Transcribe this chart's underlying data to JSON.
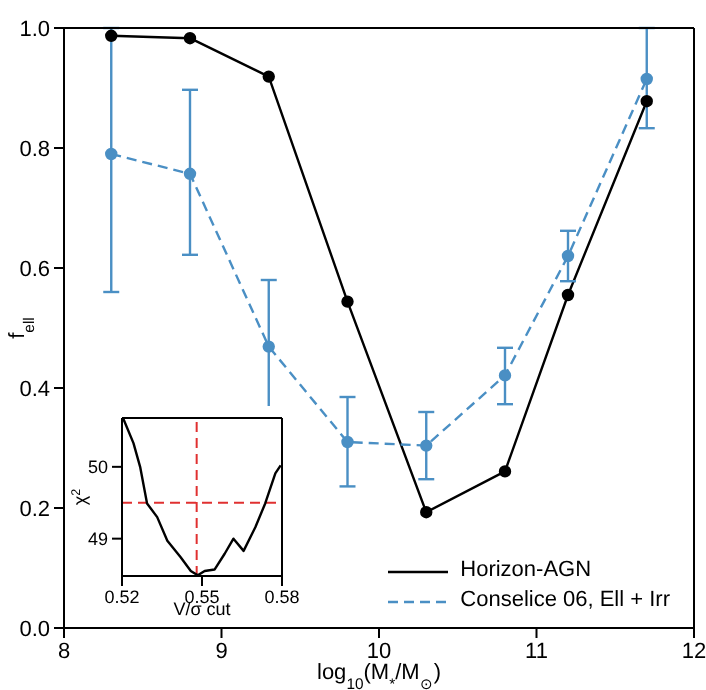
{
  "chart_data": [
    {
      "type": "line",
      "xlabel": "log$_{10}$(M$_{*}$/M$_{⊙}$)",
      "ylabel": "f$_{ell}$",
      "xlim": [
        8,
        12
      ],
      "xticks": [
        8,
        9,
        10,
        11,
        12
      ],
      "ylim": [
        0,
        1
      ],
      "yticks": [
        {
          "value": 0,
          "label": "0.0"
        },
        0.2,
        0.4,
        0.6,
        0.8,
        {
          "value": 1,
          "label": "1.0"
        }
      ],
      "grid": false,
      "legend": "bottom right",
      "marker": "circle",
      "x": [
        8.3,
        8.8,
        9.3,
        9.8,
        10.3,
        10.8,
        11.2,
        11.7
      ],
      "series": [
        {
          "name": "Horizon-AGN",
          "color": "#000000",
          "line_style": "solid",
          "values": [
            0.987,
            0.983,
            0.919,
            0.544,
            0.193,
            0.261,
            0.555,
            0.878
          ]
        },
        {
          "name": "Conselice 06, Ell + Irr",
          "color": "#4a8fc4",
          "line_style": "dashed",
          "values": [
            0.79,
            0.757,
            0.469,
            0.31,
            0.304,
            0.421,
            0.62,
            0.915
          ],
          "errors": [
            [
              0.56,
              1.0
            ],
            [
              0.622,
              0.897
            ],
            [
              0.36,
              0.58
            ],
            [
              0.236,
              0.385
            ],
            [
              0.248,
              0.36
            ],
            [
              0.373,
              0.467
            ],
            [
              0.578,
              0.662
            ],
            [
              0.833,
              1.0
            ]
          ]
        }
      ]
    },
    {
      "type": "line",
      "xlabel": "V/σ cut",
      "ylabel": "χ$^{2}$",
      "xlim": [
        0.52,
        0.58
      ],
      "xticks": [
        0.52,
        0.55,
        0.58
      ],
      "ylim": [
        48.48,
        50.68
      ],
      "yticks": [
        49,
        50
      ],
      "grid": false,
      "marker": "none",
      "x": [
        0.5205,
        0.5243,
        0.5268,
        0.5294,
        0.5332,
        0.537,
        0.542,
        0.5458,
        0.5484,
        0.551,
        0.5547,
        0.5585,
        0.5618,
        0.5656,
        0.57,
        0.5737,
        0.5775,
        0.5795
      ],
      "series": [
        {
          "color": "#000000",
          "line_style": "solid",
          "values": [
            50.67,
            50.33,
            50.0,
            49.49,
            49.3,
            48.97,
            48.74,
            48.55,
            48.49,
            48.55,
            48.57,
            48.79,
            49.0,
            48.83,
            49.16,
            49.49,
            49.91,
            50.02
          ]
        }
      ],
      "ref_lines": [
        {
          "axis": "x",
          "value": 0.548,
          "color": "#e03030",
          "line_style": "dashed"
        },
        {
          "axis": "y",
          "value": 49.5,
          "color": "#e03030",
          "line_style": "dashed"
        }
      ]
    }
  ]
}
